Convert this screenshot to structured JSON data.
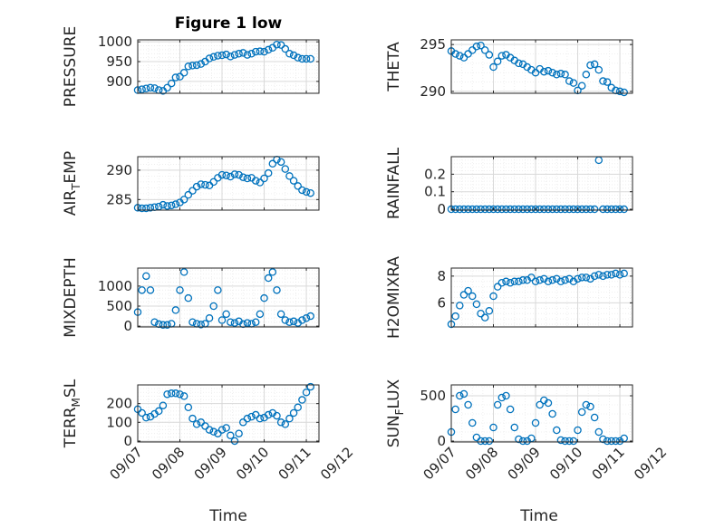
{
  "figure": {
    "title": "Figure 1 low",
    "xlabel": "Time",
    "marker_color": "#0072BD",
    "grid_color": "#d9d9d9",
    "axis_color": "#262626"
  },
  "chart_data": [
    {
      "type": "scatter",
      "ylabel": "PRESSURE",
      "xlim": [
        7,
        11.3
      ],
      "ylim": [
        870,
        1005
      ],
      "yticks": [
        900,
        950,
        1000
      ],
      "grid": true,
      "series": [
        {
          "x": [
            7.0,
            7.1,
            7.2,
            7.3,
            7.4,
            7.5,
            7.6,
            7.7,
            7.8,
            7.9,
            8.0,
            8.1,
            8.2,
            8.3,
            8.4,
            8.5,
            8.6,
            8.7,
            8.8,
            8.9,
            9.0,
            9.1,
            9.2,
            9.3,
            9.4,
            9.5,
            9.6,
            9.7,
            9.8,
            9.9,
            10.0,
            10.1,
            10.2,
            10.3,
            10.4,
            10.5,
            10.6,
            10.7,
            10.8,
            10.9,
            11.0,
            11.1
          ],
          "y": [
            878,
            880,
            882,
            884,
            883,
            878,
            876,
            884,
            895,
            910,
            912,
            922,
            938,
            940,
            941,
            944,
            950,
            958,
            962,
            965,
            966,
            968,
            963,
            967,
            970,
            972,
            967,
            970,
            975,
            976,
            975,
            980,
            985,
            993,
            992,
            982,
            970,
            966,
            960,
            957,
            957,
            957
          ]
        }
      ]
    },
    {
      "type": "scatter",
      "ylabel": "THETA",
      "xlim": [
        7,
        11.3
      ],
      "ylim": [
        289.8,
        295.5
      ],
      "yticks": [
        290,
        295
      ],
      "grid": true,
      "series": [
        {
          "x": [
            7.0,
            7.1,
            7.2,
            7.3,
            7.4,
            7.5,
            7.6,
            7.7,
            7.8,
            7.9,
            8.0,
            8.1,
            8.2,
            8.3,
            8.4,
            8.5,
            8.6,
            8.7,
            8.8,
            8.9,
            9.0,
            9.1,
            9.2,
            9.3,
            9.4,
            9.5,
            9.6,
            9.7,
            9.8,
            9.9,
            10.0,
            10.1,
            10.2,
            10.3,
            10.4,
            10.5,
            10.6,
            10.7,
            10.8,
            10.9,
            11.0,
            11.1
          ],
          "y": [
            294.3,
            294.0,
            293.8,
            293.6,
            294.0,
            294.4,
            294.8,
            294.9,
            294.4,
            293.9,
            292.6,
            293.2,
            293.8,
            293.9,
            293.6,
            293.3,
            293.0,
            292.9,
            292.6,
            292.3,
            292.0,
            292.4,
            292.1,
            292.2,
            292.0,
            291.8,
            291.9,
            291.8,
            291.1,
            290.9,
            290.1,
            290.6,
            291.8,
            292.8,
            292.9,
            292.3,
            291.1,
            291.0,
            290.4,
            290.1,
            290.0,
            289.9
          ]
        }
      ]
    },
    {
      "type": "scatter",
      "ylabel": "AIR_TEMP",
      "xlim": [
        7,
        11.3
      ],
      "ylim": [
        283.2,
        292.3
      ],
      "yticks": [
        285,
        290
      ],
      "grid": true,
      "series": [
        {
          "x": [
            7.0,
            7.1,
            7.2,
            7.3,
            7.4,
            7.5,
            7.6,
            7.7,
            7.8,
            7.9,
            8.0,
            8.1,
            8.2,
            8.3,
            8.4,
            8.5,
            8.6,
            8.7,
            8.8,
            8.9,
            9.0,
            9.1,
            9.2,
            9.3,
            9.4,
            9.5,
            9.6,
            9.7,
            9.8,
            9.9,
            10.0,
            10.1,
            10.2,
            10.3,
            10.4,
            10.5,
            10.6,
            10.7,
            10.8,
            10.9,
            11.0,
            11.1
          ],
          "y": [
            283.6,
            283.5,
            283.5,
            283.6,
            283.7,
            283.8,
            284.1,
            283.9,
            284.0,
            284.2,
            284.5,
            285.0,
            285.8,
            286.5,
            287.2,
            287.6,
            287.5,
            287.4,
            288.0,
            288.7,
            289.2,
            289.1,
            288.9,
            289.3,
            289.2,
            288.8,
            288.6,
            288.7,
            288.2,
            287.9,
            288.6,
            289.5,
            291.1,
            291.8,
            291.4,
            290.2,
            289.0,
            288.2,
            287.3,
            286.6,
            286.3,
            286.1
          ]
        }
      ]
    },
    {
      "type": "scatter",
      "ylabel": "RAINFALL",
      "xlim": [
        7,
        11.3
      ],
      "ylim": [
        -0.005,
        0.3
      ],
      "yticks": [
        0,
        0.1,
        0.2
      ],
      "grid": true,
      "series": [
        {
          "x": [
            7.0,
            7.1,
            7.2,
            7.3,
            7.4,
            7.5,
            7.6,
            7.7,
            7.8,
            7.9,
            8.0,
            8.1,
            8.2,
            8.3,
            8.4,
            8.5,
            8.6,
            8.7,
            8.8,
            8.9,
            9.0,
            9.1,
            9.2,
            9.3,
            9.4,
            9.5,
            9.6,
            9.7,
            9.8,
            9.9,
            10.0,
            10.1,
            10.2,
            10.3,
            10.4,
            10.5,
            10.6,
            10.7,
            10.8,
            10.9,
            11.0,
            11.1
          ],
          "y": [
            0,
            0,
            0,
            0,
            0,
            0,
            0,
            0,
            0,
            0,
            0,
            0,
            0,
            0,
            0,
            0,
            0,
            0,
            0,
            0,
            0,
            0,
            0,
            0,
            0,
            0,
            0,
            0,
            0,
            0,
            0,
            0,
            0,
            0,
            0,
            0.28,
            0,
            0,
            0,
            0,
            0,
            0
          ]
        }
      ]
    },
    {
      "type": "scatter",
      "ylabel": "MIXDEPTH",
      "xlim": [
        7,
        11.3
      ],
      "ylim": [
        -20,
        1450
      ],
      "yticks": [
        0,
        500,
        1000
      ],
      "grid": true,
      "series": [
        {
          "x": [
            7.0,
            7.1,
            7.2,
            7.3,
            7.4,
            7.5,
            7.6,
            7.7,
            7.8,
            7.9,
            8.0,
            8.1,
            8.2,
            8.3,
            8.4,
            8.5,
            8.6,
            8.7,
            8.8,
            8.9,
            9.0,
            9.1,
            9.2,
            9.3,
            9.4,
            9.5,
            9.6,
            9.7,
            9.8,
            9.9,
            10.0,
            10.1,
            10.2,
            10.3,
            10.4,
            10.5,
            10.6,
            10.7,
            10.8,
            10.9,
            11.0,
            11.1
          ],
          "y": [
            350,
            900,
            1250,
            900,
            100,
            50,
            30,
            30,
            60,
            400,
            900,
            1350,
            700,
            100,
            60,
            40,
            60,
            200,
            500,
            900,
            150,
            300,
            100,
            80,
            120,
            50,
            80,
            60,
            100,
            300,
            700,
            1200,
            1350,
            900,
            300,
            150,
            100,
            120,
            80,
            150,
            200,
            250
          ]
        }
      ]
    },
    {
      "type": "scatter",
      "ylabel": "H2OMIXRA",
      "xlim": [
        7,
        11.3
      ],
      "ylim": [
        4.2,
        8.6
      ],
      "yticks": [
        6,
        8
      ],
      "grid": true,
      "series": [
        {
          "x": [
            7.0,
            7.1,
            7.2,
            7.3,
            7.4,
            7.5,
            7.6,
            7.7,
            7.8,
            7.9,
            8.0,
            8.1,
            8.2,
            8.3,
            8.4,
            8.5,
            8.6,
            8.7,
            8.8,
            8.9,
            9.0,
            9.1,
            9.2,
            9.3,
            9.4,
            9.5,
            9.6,
            9.7,
            9.8,
            9.9,
            10.0,
            10.1,
            10.2,
            10.3,
            10.4,
            10.5,
            10.6,
            10.7,
            10.8,
            10.9,
            11.0,
            11.1
          ],
          "y": [
            4.4,
            5.0,
            5.8,
            6.6,
            6.9,
            6.5,
            5.9,
            5.2,
            4.9,
            5.4,
            6.5,
            7.2,
            7.5,
            7.6,
            7.5,
            7.6,
            7.6,
            7.7,
            7.7,
            7.9,
            7.6,
            7.7,
            7.8,
            7.6,
            7.7,
            7.8,
            7.6,
            7.7,
            7.8,
            7.6,
            7.8,
            7.9,
            7.9,
            7.8,
            8.0,
            8.1,
            8.0,
            8.1,
            8.1,
            8.2,
            8.1,
            8.2
          ]
        }
      ]
    },
    {
      "type": "scatter",
      "ylabel": "TERR_MSL",
      "xlim": [
        7,
        11.3
      ],
      "ylim": [
        -5,
        300
      ],
      "yticks": [
        0,
        100,
        200
      ],
      "grid": true,
      "series": [
        {
          "x": [
            7.0,
            7.1,
            7.2,
            7.3,
            7.4,
            7.5,
            7.6,
            7.7,
            7.8,
            7.9,
            8.0,
            8.1,
            8.2,
            8.3,
            8.4,
            8.5,
            8.6,
            8.7,
            8.8,
            8.9,
            9.0,
            9.1,
            9.2,
            9.3,
            9.4,
            9.5,
            9.6,
            9.7,
            9.8,
            9.9,
            10.0,
            10.1,
            10.2,
            10.3,
            10.4,
            10.5,
            10.6,
            10.7,
            10.8,
            10.9,
            11.0,
            11.1
          ],
          "y": [
            170,
            150,
            125,
            130,
            145,
            160,
            190,
            250,
            255,
            255,
            250,
            240,
            180,
            120,
            90,
            100,
            80,
            60,
            50,
            40,
            60,
            70,
            30,
            0,
            40,
            100,
            120,
            130,
            140,
            120,
            125,
            140,
            150,
            135,
            100,
            90,
            120,
            150,
            180,
            220,
            260,
            290
          ]
        }
      ]
    },
    {
      "type": "scatter",
      "ylabel": "SUN_FLUX",
      "xlim": [
        7,
        11.3
      ],
      "ylim": [
        -10,
        620
      ],
      "yticks": [
        0,
        500
      ],
      "grid": true,
      "series": [
        {
          "x": [
            7.0,
            7.1,
            7.2,
            7.3,
            7.4,
            7.5,
            7.6,
            7.7,
            7.8,
            7.9,
            8.0,
            8.1,
            8.2,
            8.3,
            8.4,
            8.5,
            8.6,
            8.7,
            8.8,
            8.9,
            9.0,
            9.1,
            9.2,
            9.3,
            9.4,
            9.5,
            9.6,
            9.7,
            9.8,
            9.9,
            10.0,
            10.1,
            10.2,
            10.3,
            10.4,
            10.5,
            10.6,
            10.7,
            10.8,
            10.9,
            11.0,
            11.1
          ],
          "y": [
            100,
            350,
            500,
            520,
            400,
            200,
            40,
            0,
            0,
            0,
            150,
            400,
            480,
            500,
            350,
            150,
            20,
            0,
            0,
            30,
            200,
            400,
            450,
            420,
            300,
            120,
            10,
            0,
            0,
            0,
            120,
            320,
            400,
            380,
            260,
            100,
            20,
            0,
            0,
            0,
            0,
            30
          ]
        }
      ]
    }
  ],
  "x_ticks": [
    {
      "value": 7,
      "label": "09/07"
    },
    {
      "value": 8,
      "label": "09/08"
    },
    {
      "value": 9,
      "label": "09/09"
    },
    {
      "value": 10,
      "label": "09/10"
    },
    {
      "value": 11,
      "label": "09/11"
    },
    {
      "value": 12,
      "label": "09/12"
    }
  ]
}
